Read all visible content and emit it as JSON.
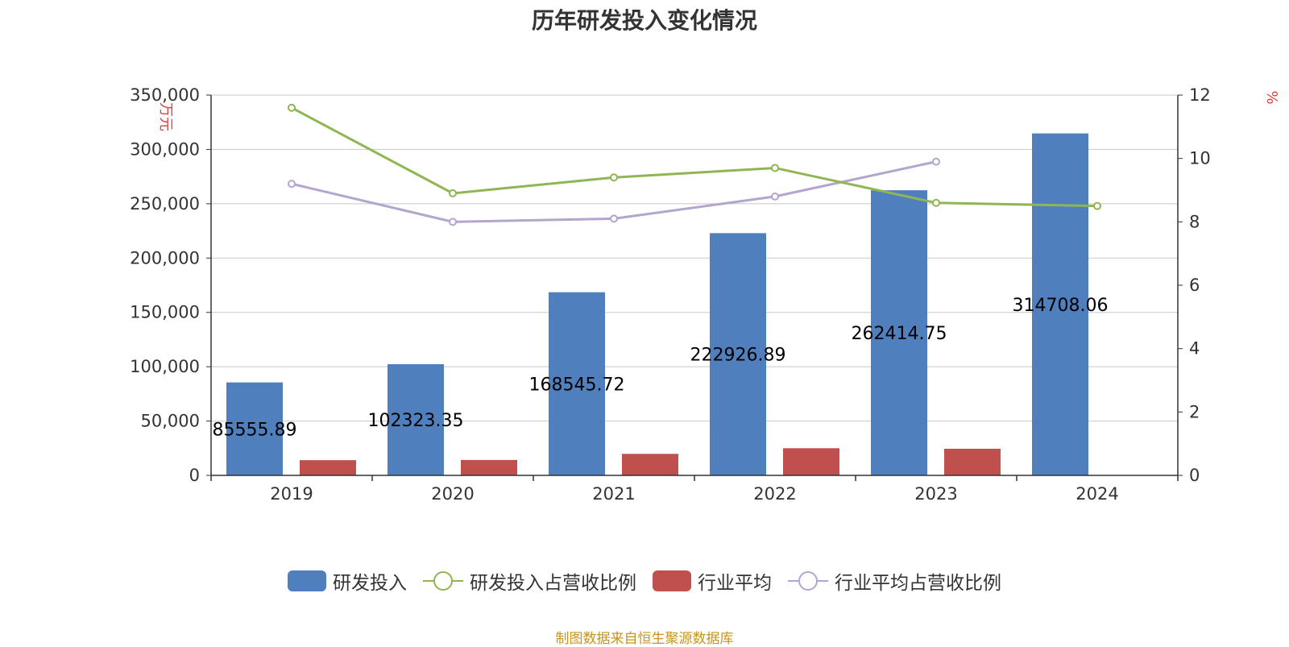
{
  "chart_data": {
    "type": "bar",
    "title": "历年研发投入变化情况",
    "categories": [
      "2019",
      "2020",
      "2021",
      "2022",
      "2023",
      "2024"
    ],
    "y_left": {
      "unit": "万元",
      "ticks": [
        "0",
        "50,000",
        "100,000",
        "150,000",
        "200,000",
        "250,000",
        "300,000",
        "350,000"
      ],
      "ylim": [
        0,
        350000
      ]
    },
    "y_right": {
      "unit": "%",
      "ticks": [
        "0",
        "2",
        "4",
        "6",
        "8",
        "10",
        "12"
      ],
      "ylim": [
        0,
        12
      ]
    },
    "series": [
      {
        "name": "研发投入",
        "kind": "bar",
        "axis": "left",
        "color": "#4f7fbd",
        "values": [
          85555.89,
          102323.35,
          168545.72,
          222926.89,
          262414.75,
          314708.06
        ],
        "labels": [
          "85555.89",
          "102323.35",
          "168545.72",
          "222926.89",
          "262414.75",
          "314708.06"
        ]
      },
      {
        "name": "研发投入占营收比例",
        "kind": "line",
        "axis": "right",
        "color": "#8fb653",
        "values": [
          11.6,
          8.9,
          9.4,
          9.7,
          8.6,
          8.5
        ]
      },
      {
        "name": "行业平均",
        "kind": "bar",
        "axis": "left",
        "color": "#c0504d",
        "values": [
          14000,
          14200,
          19800,
          25000,
          24500,
          null
        ]
      },
      {
        "name": "行业平均占营收比例",
        "kind": "line",
        "axis": "right",
        "color": "#b3a5cf",
        "values": [
          9.2,
          8.0,
          8.1,
          8.8,
          9.9,
          null
        ]
      }
    ],
    "legend_position": "bottom",
    "grid": true
  },
  "source_note": "制图数据来自恒生聚源数据库"
}
